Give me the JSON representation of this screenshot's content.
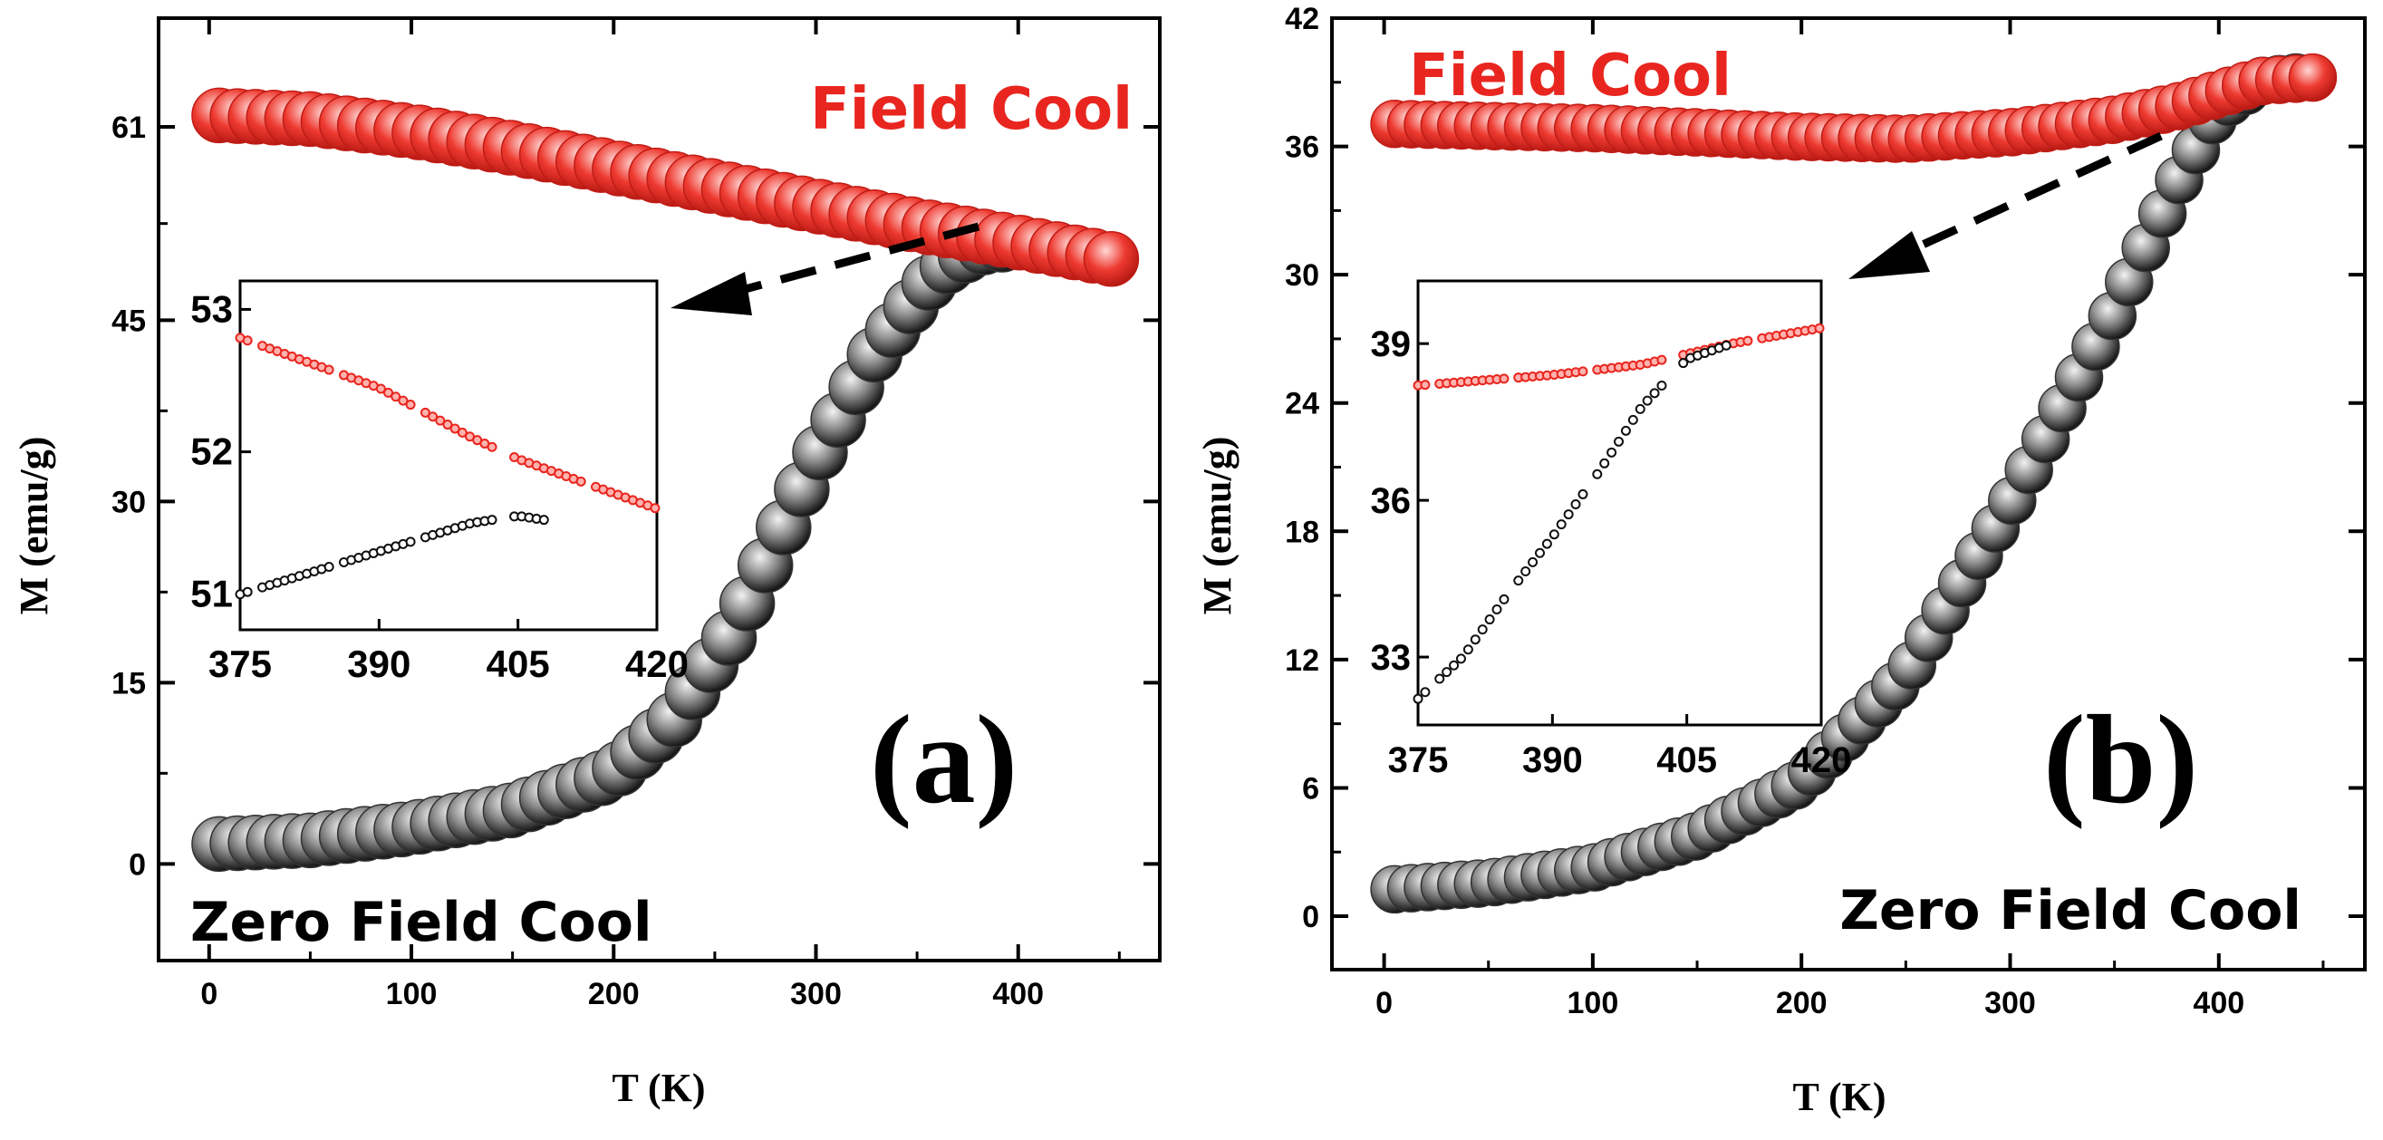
{
  "chart_data": [
    {
      "type": "scatter",
      "panel_label": "(a)",
      "xlabel": "T (K)",
      "ylabel": "M (emu/g)",
      "xlim": [
        -25,
        470
      ],
      "ylim": [
        -8,
        70
      ],
      "xticks": [
        0,
        100,
        200,
        300,
        400
      ],
      "yticks": [
        0,
        15,
        30,
        45,
        61
      ],
      "annotations": {
        "field_cool": "Field Cool",
        "zero_field_cool": "Zero Field Cool"
      },
      "series": [
        {
          "name": "Field Cool",
          "color": "#e8261f",
          "x": [
            5,
            50,
            100,
            150,
            200,
            250,
            300,
            350,
            400,
            450
          ],
          "y": [
            61.5,
            61.2,
            60.2,
            58.8,
            57.2,
            55.6,
            54.0,
            52.4,
            51.0,
            49.5
          ]
        },
        {
          "name": "Zero Field Cool",
          "color": "#222222",
          "x": [
            5,
            50,
            100,
            150,
            200,
            230,
            260,
            280,
            300,
            330,
            360,
            380,
            400
          ],
          "y": [
            1.2,
            1.5,
            2.5,
            4.0,
            7.0,
            11.5,
            19.0,
            26.0,
            33.0,
            42.0,
            48.5,
            50.5,
            51.0
          ]
        }
      ],
      "inset": {
        "xlim": [
          375,
          420
        ],
        "ylim": [
          50.75,
          53.2
        ],
        "xticks": [
          375,
          390,
          405,
          420
        ],
        "yticks": [
          51,
          52,
          53
        ],
        "series": [
          {
            "name": "Field Cool",
            "color": "#e8261f",
            "x": [
              375,
              390,
              400,
              405,
              420
            ],
            "y": [
              52.8,
              52.45,
              52.1,
              51.95,
              51.6
            ]
          },
          {
            "name": "Zero Field Cool",
            "color": "#222222",
            "x": [
              375,
              390,
              400,
              405,
              408
            ],
            "y": [
              51.0,
              51.3,
              51.5,
              51.55,
              51.52
            ]
          }
        ]
      }
    },
    {
      "type": "scatter",
      "panel_label": "(b)",
      "xlabel": "T (K)",
      "ylabel": "M (emu/g)",
      "xlim": [
        -25,
        470
      ],
      "ylim": [
        -2.5,
        42
      ],
      "xticks": [
        0,
        100,
        200,
        300,
        400
      ],
      "yticks": [
        0,
        6,
        12,
        18,
        24,
        30,
        36,
        42
      ],
      "annotations": {
        "field_cool": "Field Cool",
        "zero_field_cool": "Zero Field Cool"
      },
      "series": [
        {
          "name": "Field Cool",
          "color": "#e8261f",
          "x": [
            5,
            50,
            100,
            150,
            200,
            250,
            300,
            350,
            380,
            400,
            420,
            450
          ],
          "y": [
            36.8,
            36.7,
            36.6,
            36.4,
            36.2,
            36.1,
            36.4,
            37.0,
            37.6,
            38.2,
            38.8,
            39.0
          ]
        },
        {
          "name": "Zero Field Cool",
          "color": "#222222",
          "x": [
            5,
            50,
            100,
            150,
            200,
            250,
            300,
            350,
            380,
            400,
            420,
            440
          ],
          "y": [
            1.0,
            1.3,
            2.0,
            3.5,
            6.0,
            11.0,
            19.0,
            28.0,
            34.0,
            37.5,
            38.8,
            39.0
          ]
        }
      ],
      "inset": {
        "xlim": [
          375,
          420
        ],
        "ylim": [
          31.7,
          40.2
        ],
        "xticks": [
          375,
          390,
          405,
          420
        ],
        "yticks": [
          33,
          36,
          39
        ],
        "series": [
          {
            "name": "Field Cool",
            "color": "#e8261f",
            "x": [
              375,
              390,
              400,
              405,
              410,
              420
            ],
            "y": [
              38.2,
              38.4,
              38.6,
              38.8,
              39.0,
              39.3
            ]
          },
          {
            "name": "Zero Field Cool",
            "color": "#222222",
            "x": [
              375,
              380,
              385,
              390,
              395,
              400,
              405,
              410
            ],
            "y": [
              32.2,
              33.0,
              34.2,
              35.3,
              36.5,
              37.8,
              38.7,
              39.0
            ]
          }
        ]
      }
    }
  ]
}
